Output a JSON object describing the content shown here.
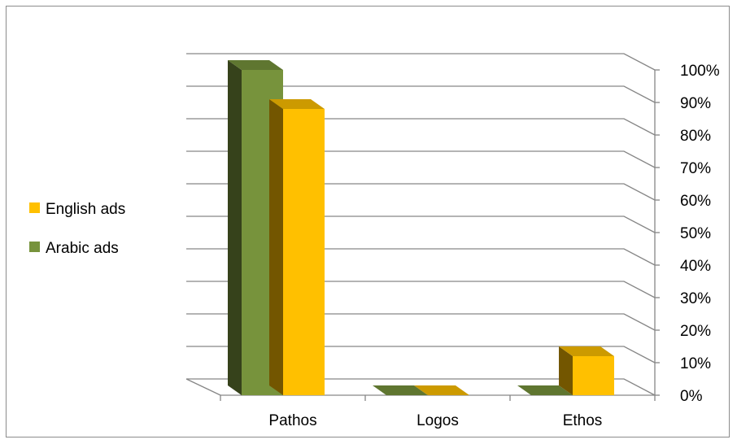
{
  "chart_data": {
    "type": "bar",
    "title": "",
    "xlabel": "",
    "ylabel": "",
    "categories": [
      "Pathos",
      "Logos",
      "Ethos"
    ],
    "series": [
      {
        "name": "Arabic ads",
        "values": [
          100,
          0,
          0
        ],
        "color": "#77933C"
      },
      {
        "name": "English ads",
        "values": [
          88,
          0,
          12
        ],
        "color": "#FFC000"
      }
    ],
    "ylim": [
      0,
      100
    ],
    "yticks": [
      "0%",
      "10%",
      "20%",
      "30%",
      "40%",
      "50%",
      "60%",
      "70%",
      "80%",
      "90%",
      "100%"
    ],
    "y_axis_position": "right",
    "grid": true,
    "three_d": true,
    "legend": {
      "position": "left",
      "entries": [
        {
          "label": "English ads",
          "color": "#FFC000"
        },
        {
          "label": "Arabic ads",
          "color": "#77933C"
        }
      ]
    }
  }
}
